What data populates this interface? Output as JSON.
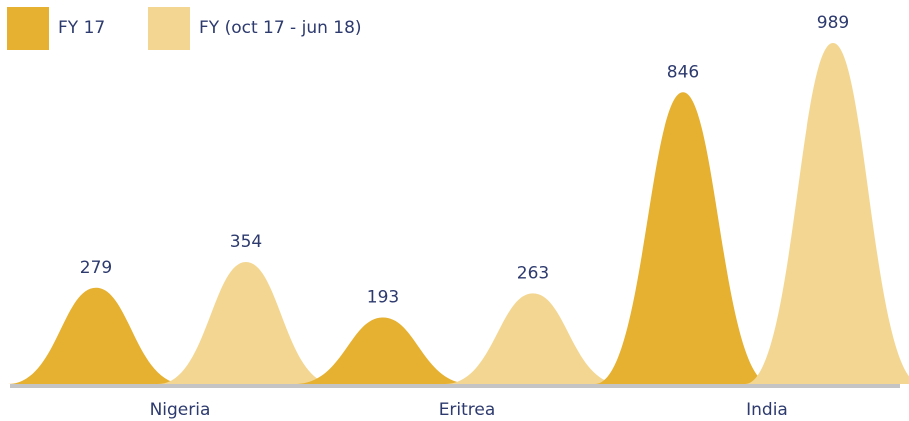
{
  "chart_data": {
    "type": "bar",
    "categories": [
      "Nigeria",
      "Eritrea",
      "India"
    ],
    "series": [
      {
        "name": "FY 17",
        "color": "#e6b031",
        "values": [
          279,
          193,
          846
        ]
      },
      {
        "name": "FY (oct 17 - jun 18)",
        "color": "#f3d691",
        "values": [
          354,
          263,
          989
        ]
      }
    ],
    "legend": "top-left"
  }
}
